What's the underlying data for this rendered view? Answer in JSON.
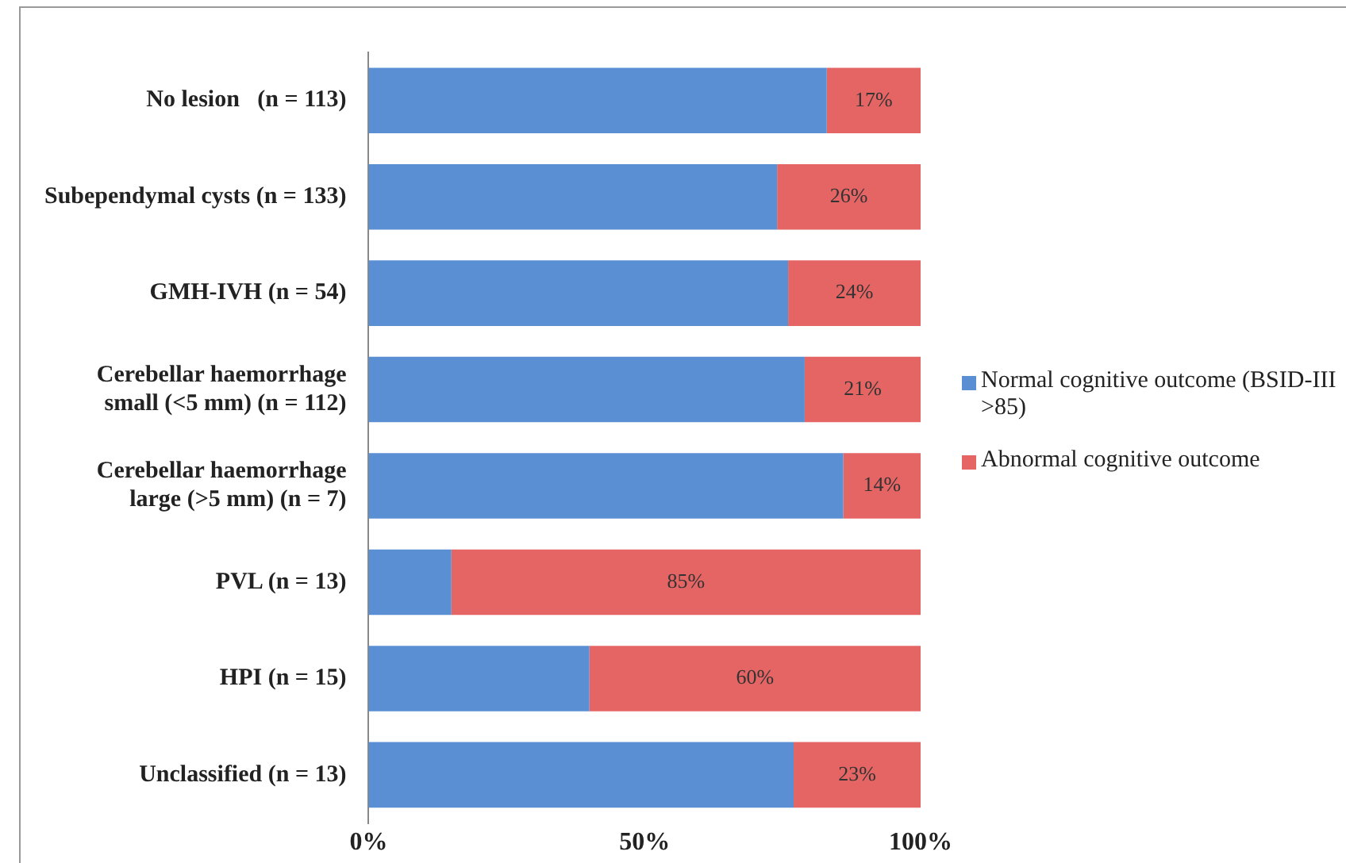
{
  "chart_data": {
    "type": "bar",
    "orientation": "horizontal",
    "stacked": true,
    "categories": [
      "No lesion   (n = 113)",
      "Subependymal cysts (n = 133)",
      "GMH-IVH (n = 54)",
      "Cerebellar haemorrhage\nsmall (<5 mm) (n = 112)",
      "Cerebellar haemorrhage\nlarge (>5 mm) (n = 7)",
      "PVL (n = 13)",
      "HPI (n = 15)",
      "Unclassified (n = 13)"
    ],
    "series": [
      {
        "name": "Normal cognitive outcome (BSID-III >85)",
        "color": "#5b8fd3",
        "values": [
          83,
          74,
          76,
          79,
          86,
          15,
          40,
          77
        ]
      },
      {
        "name": "Abnormal cognitive outcome",
        "color": "#e56464",
        "values": [
          17,
          26,
          24,
          21,
          14,
          85,
          60,
          23
        ],
        "value_labels": [
          "17%",
          "26%",
          "24%",
          "21%",
          "14%",
          "85%",
          "60%",
          "23%"
        ]
      }
    ],
    "xlim": [
      0,
      100
    ],
    "xticks": [
      {
        "value": 0,
        "label": "0%"
      },
      {
        "value": 50,
        "label": "50%"
      },
      {
        "value": 100,
        "label": "100%"
      }
    ],
    "grid": false,
    "legend": "right"
  }
}
